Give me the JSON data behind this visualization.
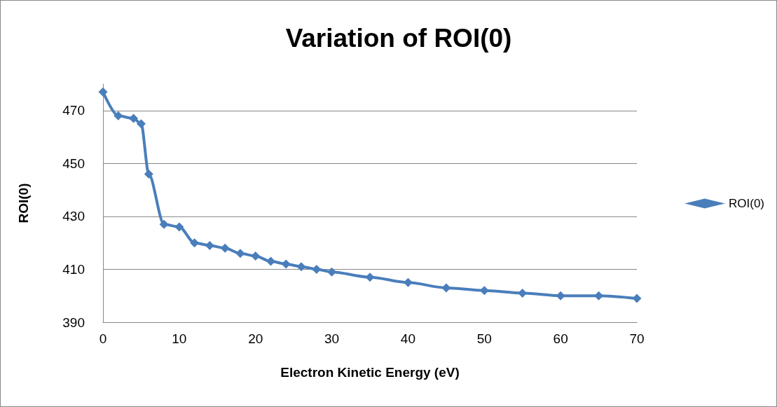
{
  "chart_data": {
    "type": "line",
    "title": "Variation of ROI(0)",
    "xlabel": "Electron Kinetic Energy (eV)",
    "ylabel": "ROI(0)",
    "x": [
      0,
      2,
      4,
      5,
      6,
      8,
      10,
      12,
      14,
      16,
      18,
      20,
      22,
      24,
      26,
      28,
      30,
      35,
      40,
      45,
      50,
      55,
      60,
      65,
      70
    ],
    "series": [
      {
        "name": "ROI(0)",
        "color": "#4a7ebb",
        "values": [
          477,
          468,
          467,
          465,
          446,
          427,
          426,
          420,
          419,
          418,
          416,
          415,
          413,
          412,
          411,
          410,
          409,
          407,
          405,
          403,
          402,
          401,
          400,
          400,
          399
        ]
      }
    ],
    "xlim": [
      0,
      70
    ],
    "xticks": [
      0,
      10,
      20,
      30,
      40,
      50,
      60,
      70
    ],
    "ylim": [
      390,
      480
    ],
    "yticks": [
      390,
      410,
      430,
      450,
      470
    ],
    "grid": "y",
    "legend": "right",
    "marker": "diamond"
  }
}
